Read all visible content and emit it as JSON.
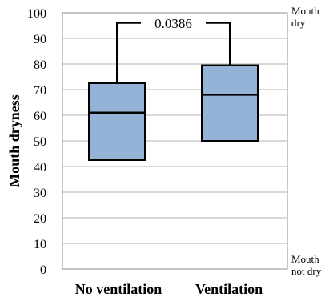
{
  "chart_data": {
    "type": "box",
    "ylabel": "Mouth dryness",
    "ylim": [
      0,
      100
    ],
    "yticks": [
      "0",
      "10",
      "20",
      "30",
      "40",
      "50",
      "60",
      "70",
      "80",
      "90",
      "100"
    ],
    "grid": true,
    "categories": [
      "No ventilation",
      "Ventilation"
    ],
    "boxes": [
      {
        "q1": 42.5,
        "median": 61,
        "q3": 72.5
      },
      {
        "q1": 50,
        "median": 68,
        "q3": 79.5
      }
    ],
    "box_fill": "#95b3d7",
    "annotation": {
      "text": "0.0386",
      "between": [
        0,
        1
      ],
      "y": 96
    },
    "right_labels": {
      "top": [
        "Mouth",
        "dry"
      ],
      "bottom": [
        "Mouth",
        "not dry"
      ]
    }
  }
}
